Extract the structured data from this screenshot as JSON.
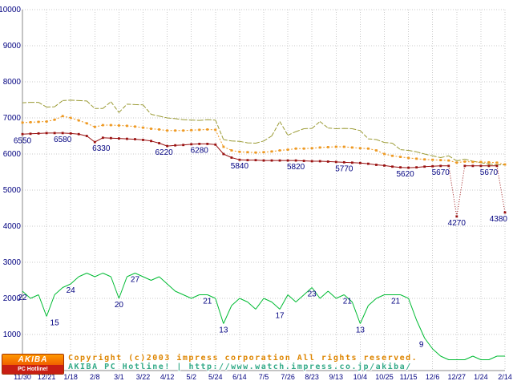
{
  "footer": {
    "logo": {
      "top": "AKIBA",
      "bottom": "PC Hotline!"
    },
    "copyright": "Copyright (c)2003 impress corporation All rights reserved.",
    "site": "AKIBA PC Hotline!",
    "separator": "|",
    "url": "http://www.watch.impress.co.jp/akiba/"
  },
  "chart_data": {
    "type": "line",
    "title": "",
    "xlabel": "",
    "ylabel": "",
    "ylim": [
      0,
      10000
    ],
    "y_ticks": [
      0,
      1000,
      2000,
      3000,
      4000,
      5000,
      6000,
      7000,
      8000,
      9000,
      10000
    ],
    "x_tick_labels": [
      "11/30",
      "12/21",
      "1/18",
      "2/8",
      "3/1",
      "3/22",
      "4/12",
      "5/2",
      "5/24",
      "6/14",
      "7/5",
      "7/26",
      "8/23",
      "9/13",
      "10/4",
      "10/25",
      "11/15",
      "12/6",
      "12/27",
      "1/24",
      "2/14"
    ],
    "points_per_tick": 3,
    "grid": true,
    "legend_position": "none",
    "axis_color": "#888888",
    "grid_color": "#c9c9c9",
    "axis_label_color": "#000080",
    "value_label_color": "#000080",
    "series": [
      {
        "name": "highest-price",
        "color": "#9a9a33",
        "style": "dashed",
        "values": [
          7420,
          7430,
          7430,
          7300,
          7310,
          7480,
          7490,
          7480,
          7470,
          7260,
          7260,
          7450,
          7150,
          7380,
          7370,
          7360,
          7100,
          7050,
          7000,
          6980,
          6950,
          6940,
          6930,
          6950,
          6940,
          6400,
          6360,
          6350,
          6310,
          6300,
          6360,
          6500,
          6900,
          6520,
          6620,
          6700,
          6710,
          6900,
          6720,
          6700,
          6710,
          6700,
          6650,
          6420,
          6400,
          6320,
          6300,
          6120,
          6100,
          6060,
          6000,
          5950,
          5900,
          5950,
          5810,
          5860,
          5800,
          5760,
          5720,
          5700,
          5700
        ]
      },
      {
        "name": "average-price",
        "color": "#ee9922",
        "style": "dotted-markers",
        "values": [
          6870,
          6880,
          6890,
          6900,
          6950,
          7050,
          7000,
          6930,
          6850,
          6750,
          6800,
          6800,
          6790,
          6780,
          6760,
          6730,
          6700,
          6680,
          6650,
          6650,
          6650,
          6660,
          6670,
          6680,
          6670,
          6200,
          6100,
          6060,
          6050,
          6040,
          6050,
          6070,
          6100,
          6120,
          6150,
          6150,
          6160,
          6180,
          6190,
          6200,
          6200,
          6180,
          6160,
          6150,
          6100,
          6000,
          5950,
          5920,
          5890,
          5870,
          5850,
          5840,
          5830,
          5820,
          5760,
          5790,
          5780,
          5780,
          5770,
          5760,
          5710
        ]
      },
      {
        "name": "lowest-price",
        "color": "#991111",
        "style": "solid-markers",
        "dashed_segments": [
          [
            53,
            54
          ],
          [
            54,
            55
          ],
          [
            59,
            60
          ]
        ],
        "values": [
          6550,
          6560,
          6570,
          6580,
          6580,
          6580,
          6570,
          6550,
          6500,
          6330,
          6450,
          6440,
          6430,
          6420,
          6410,
          6390,
          6360,
          6300,
          6220,
          6240,
          6250,
          6270,
          6280,
          6280,
          6260,
          6000,
          5900,
          5840,
          5830,
          5830,
          5820,
          5820,
          5820,
          5820,
          5820,
          5810,
          5800,
          5800,
          5790,
          5780,
          5770,
          5760,
          5750,
          5730,
          5700,
          5680,
          5650,
          5630,
          5620,
          5630,
          5650,
          5660,
          5670,
          5670,
          4270,
          5670,
          5670,
          5670,
          5670,
          5670,
          4380
        ]
      },
      {
        "name": "shop-count",
        "color": "#00bb33",
        "style": "solid",
        "scale": 100,
        "values": [
          22,
          20,
          21,
          15,
          21,
          23,
          24,
          26,
          27,
          26,
          27,
          26,
          20,
          26,
          27,
          26,
          25,
          26,
          24,
          22,
          21,
          20,
          21,
          21,
          20,
          13,
          18,
          20,
          19,
          17,
          20,
          19,
          17,
          21,
          19,
          21,
          23,
          20,
          22,
          20,
          21,
          19,
          13,
          18,
          20,
          21,
          21,
          21,
          20,
          14,
          9,
          6,
          4,
          3,
          3,
          3,
          4,
          3,
          3,
          4,
          4
        ]
      }
    ],
    "point_labels": [
      {
        "series": "lowest-price",
        "i": 0,
        "t": "6550"
      },
      {
        "series": "lowest-price",
        "i": 5,
        "t": "6580"
      },
      {
        "series": "lowest-price",
        "i": 9,
        "t": "6330",
        "dx": 8
      },
      {
        "series": "lowest-price",
        "i": 18,
        "t": "6220",
        "dx": -4
      },
      {
        "series": "lowest-price",
        "i": 22,
        "t": "6280"
      },
      {
        "series": "lowest-price",
        "i": 27,
        "t": "5840"
      },
      {
        "series": "lowest-price",
        "i": 34,
        "t": "5820"
      },
      {
        "series": "lowest-price",
        "i": 40,
        "t": "5770"
      },
      {
        "series": "lowest-price",
        "i": 48,
        "t": "5620",
        "dx": -4
      },
      {
        "series": "lowest-price",
        "i": 52,
        "t": "5670"
      },
      {
        "series": "lowest-price",
        "i": 54,
        "t": "4270"
      },
      {
        "series": "lowest-price",
        "i": 58,
        "t": "5670"
      },
      {
        "series": "lowest-price",
        "i": 60,
        "t": "4380",
        "anchor": "end",
        "dx": 3
      },
      {
        "series": "shop-count",
        "i": 0,
        "t": "22"
      },
      {
        "series": "shop-count",
        "i": 3,
        "t": "15",
        "dx": 10
      },
      {
        "series": "shop-count",
        "i": 6,
        "t": "24"
      },
      {
        "series": "shop-count",
        "i": 12,
        "t": "20"
      },
      {
        "series": "shop-count",
        "i": 14,
        "t": "27"
      },
      {
        "series": "shop-count",
        "i": 23,
        "t": "21"
      },
      {
        "series": "shop-count",
        "i": 25,
        "t": "13"
      },
      {
        "series": "shop-count",
        "i": 32,
        "t": "17"
      },
      {
        "series": "shop-count",
        "i": 36,
        "t": "23"
      },
      {
        "series": "shop-count",
        "i": 40,
        "t": "21",
        "dx": 4
      },
      {
        "series": "shop-count",
        "i": 42,
        "t": "13"
      },
      {
        "series": "shop-count",
        "i": 46,
        "t": "21",
        "dx": 4
      },
      {
        "series": "shop-count",
        "i": 50,
        "t": "9",
        "dx": -4
      }
    ]
  }
}
